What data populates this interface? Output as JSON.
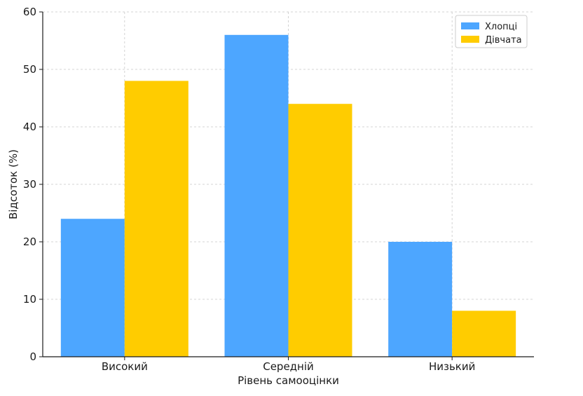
{
  "chart_data": {
    "type": "bar",
    "title": "",
    "xlabel": "Рівень самооцінки",
    "ylabel": "Відсоток (%)",
    "categories": [
      "Високий",
      "Середній",
      "Низький"
    ],
    "series": [
      {
        "name": "Хлопці",
        "values": [
          24,
          56,
          20
        ],
        "color": "#4da6ff"
      },
      {
        "name": "Дівчата",
        "values": [
          48,
          44,
          8
        ],
        "color": "#ffcc00"
      }
    ],
    "ylim": [
      0,
      60
    ],
    "yticks": [
      0,
      10,
      20,
      30,
      40,
      50,
      60
    ],
    "grid": true,
    "legend_position": "top-right"
  }
}
